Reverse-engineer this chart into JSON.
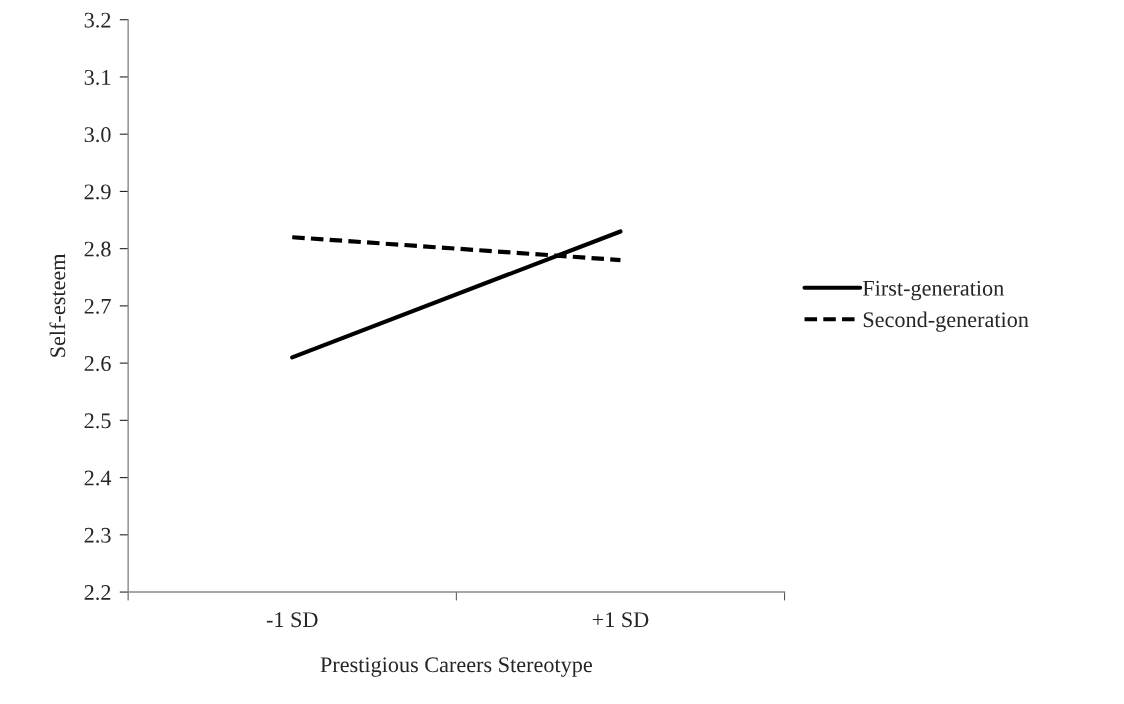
{
  "chart_data": {
    "type": "line",
    "xlabel": "Prestigious Careers Stereotype",
    "ylabel": "Self-esteem",
    "categories": [
      "-1 SD",
      "+1 SD"
    ],
    "series": [
      {
        "name": "First-generation",
        "color": "#000000",
        "line_style": "solid",
        "values": [
          2.61,
          2.83
        ]
      },
      {
        "name": "Second-generation",
        "color": "#000000",
        "line_style": "dashed",
        "values": [
          2.82,
          2.78
        ]
      }
    ],
    "ylim": [
      2.2,
      3.2
    ],
    "yticks": [
      {
        "value": 2.2,
        "label": "2.2"
      },
      {
        "value": 2.3,
        "label": "2.3"
      },
      {
        "value": 2.4,
        "label": "2.4"
      },
      {
        "value": 2.5,
        "label": "2.5"
      },
      {
        "value": 2.6,
        "label": "2.6"
      },
      {
        "value": 2.7,
        "label": "2.7"
      },
      {
        "value": 2.8,
        "label": "2.8"
      },
      {
        "value": 2.9,
        "label": "2.9"
      },
      {
        "value": 3.0,
        "label": "3.0"
      },
      {
        "value": 3.1,
        "label": "3.1"
      },
      {
        "value": 3.2,
        "label": "3.2"
      }
    ],
    "grid": false,
    "legend": "right",
    "marker": "none"
  }
}
